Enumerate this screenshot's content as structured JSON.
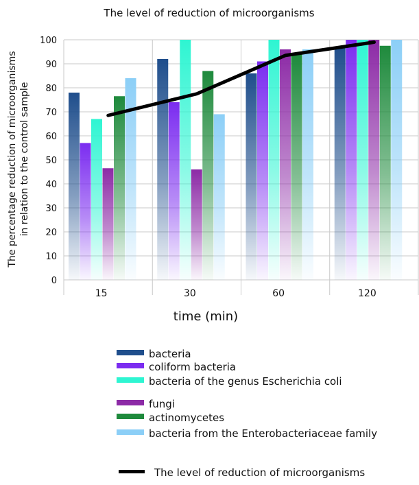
{
  "chart_data": {
    "type": "bar",
    "title": "The level of reduction of microorganisms",
    "xlabel": "time (min)",
    "ylabel_lines": [
      "The percentage reduction of microorganisms",
      "in relation to the control sample"
    ],
    "categories": [
      "15",
      "30",
      "60",
      "120"
    ],
    "ylim": [
      0,
      100
    ],
    "yticks": [
      0,
      10,
      20,
      30,
      40,
      50,
      60,
      70,
      80,
      90,
      100
    ],
    "grid": true,
    "legend_position": "bottom",
    "series": [
      {
        "name": "bacteria",
        "color": "#1f4e8c",
        "values": [
          78,
          92,
          86,
          97
        ]
      },
      {
        "name": "coliform bacteria",
        "color": "#7b2cf0",
        "values": [
          57,
          74,
          91,
          100
        ]
      },
      {
        "name": "bacteria of the genus Escherichia coli",
        "color": "#2ef5d2",
        "values": [
          67,
          100,
          100,
          100
        ]
      },
      {
        "name": "fungi",
        "color": "#8c2aa6",
        "values": [
          46.5,
          46,
          96,
          100
        ]
      },
      {
        "name": "actinomycetes",
        "color": "#1e8a3c",
        "values": [
          76.5,
          87,
          94,
          97.5
        ]
      },
      {
        "name": "bacteria from the Enterobacteriaceae family",
        "color": "#8ccff7",
        "values": [
          84,
          69,
          96,
          100
        ]
      }
    ],
    "line_series": {
      "name": "The level of reduction of microorganisms",
      "color": "#000000",
      "values": [
        68.5,
        77.5,
        93.5,
        99
      ]
    }
  }
}
